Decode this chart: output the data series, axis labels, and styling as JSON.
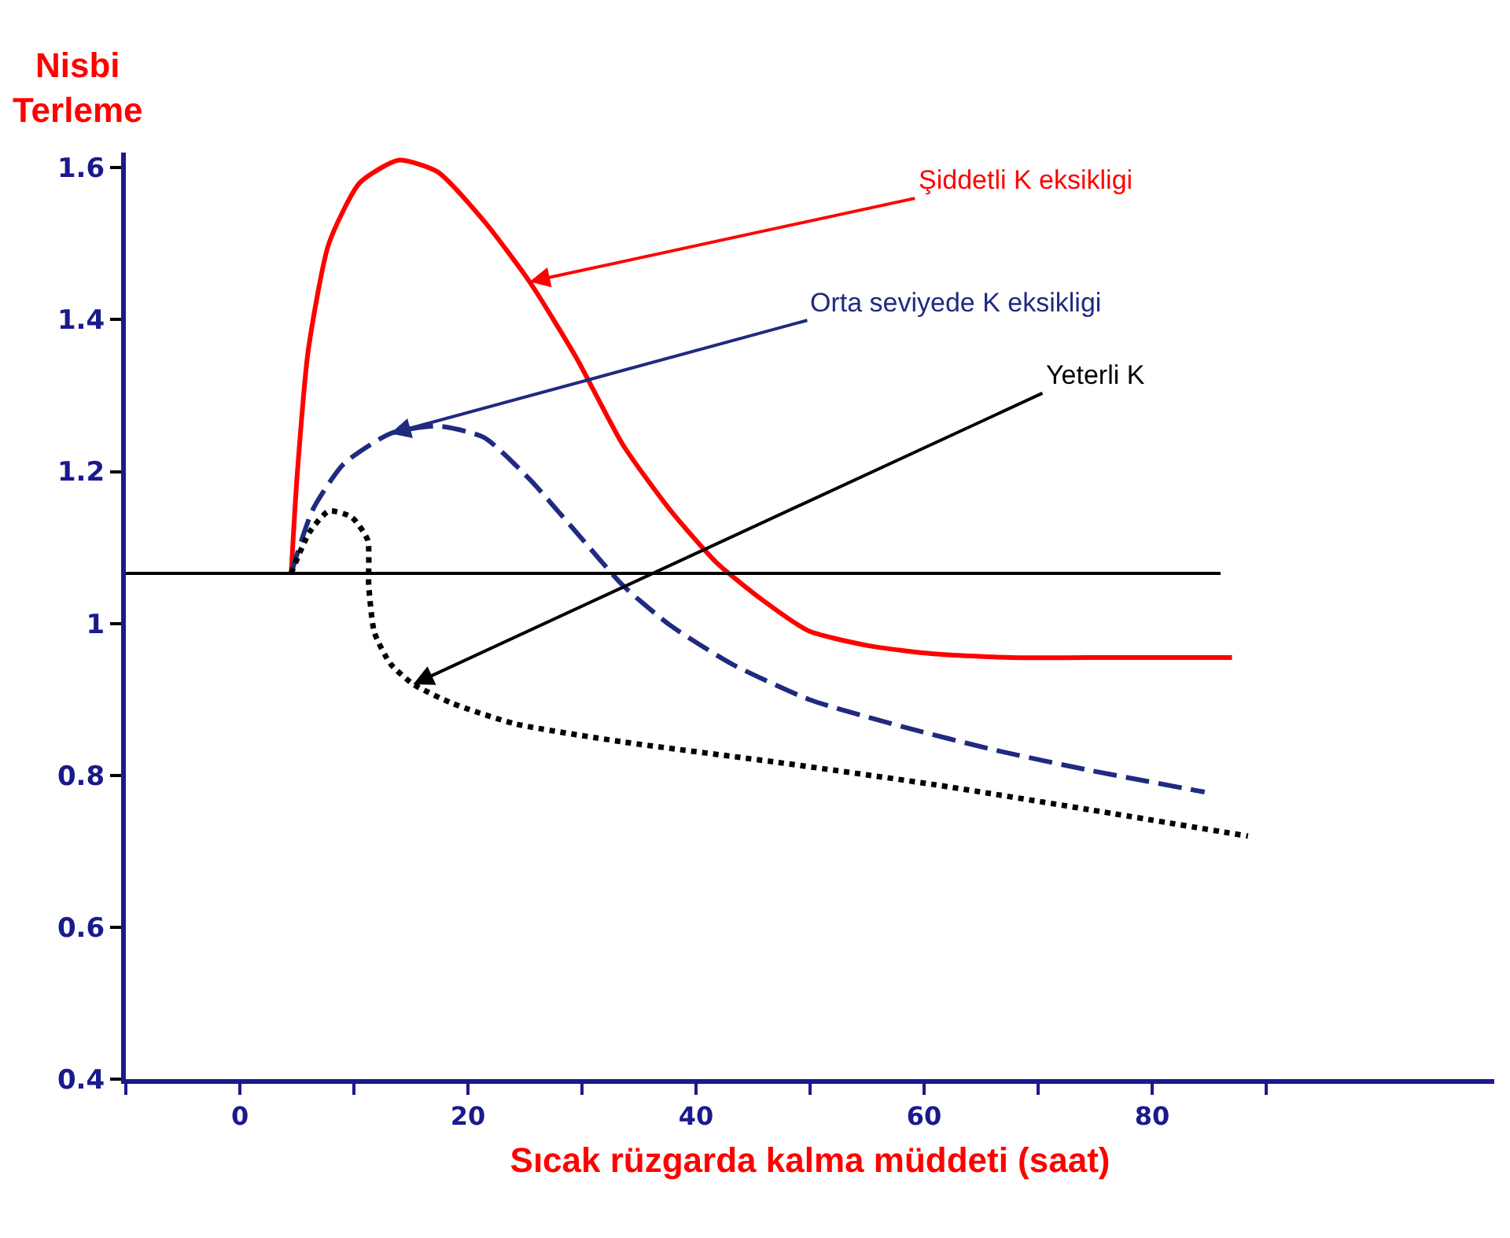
{
  "chart_data": {
    "type": "line",
    "ylabel": "Nisbi\nTerleme",
    "xlabel": "Sıcak rüzgarda kalma müddeti (saat)",
    "xlim": [
      -10,
      110
    ],
    "xticks": [
      {
        "value": -10,
        "label": null
      },
      0,
      {
        "value": 10,
        "label": null
      },
      20,
      {
        "value": 30,
        "label": null
      },
      40,
      {
        "value": 50,
        "label": null
      },
      60,
      {
        "value": 70,
        "label": null
      },
      80,
      {
        "value": 90,
        "label": null
      }
    ],
    "ylim": [
      0.4,
      1.62
    ],
    "yticks": [
      0.4,
      0.6,
      0.8,
      1,
      1.2,
      1.4,
      1.6
    ],
    "grid": false,
    "legend": false,
    "marker": "none",
    "ref_lines": [
      {
        "axis": "y",
        "value": 1.066,
        "color": "#000000"
      }
    ],
    "series": [
      {
        "name": "Şiddetli K eksikligi",
        "color": "#ff0000",
        "line_style": "solid",
        "x": [
          4.5,
          5,
          6,
          7.8,
          10.5,
          13.9,
          17.3,
          21.4,
          25.4,
          29.5,
          33.6,
          37.7,
          41.8,
          45.9,
          49.9,
          55.4,
          60.8,
          67.6,
          74.4,
          87
        ],
        "values": [
          1.066,
          1.19,
          1.36,
          1.5,
          1.58,
          1.61,
          1.595,
          1.53,
          1.45,
          1.35,
          1.235,
          1.15,
          1.08,
          1.03,
          0.99,
          0.97,
          0.96,
          0.955,
          0.955,
          0.955
        ]
      },
      {
        "name": "Orta seviyede K eksikligi",
        "color": "#1f2a80",
        "line_style": "dashed",
        "x": [
          4.5,
          6.4,
          9.1,
          13.2,
          17.3,
          21.4,
          25.4,
          29.5,
          33.6,
          37.7,
          43.1,
          49.9,
          58.1,
          66.3,
          74.4,
          84.6
        ],
        "values": [
          1.066,
          1.15,
          1.21,
          1.25,
          1.26,
          1.245,
          1.19,
          1.12,
          1.05,
          0.998,
          0.947,
          0.9,
          0.864,
          0.833,
          0.807,
          0.778
        ]
      },
      {
        "name": "Yeterli K",
        "color": "#000000",
        "line_style": "dotted",
        "x": [
          4.5,
          6.1,
          7.8,
          9.8,
          11.2,
          11.3,
          11.8,
          13.2,
          15.2,
          18.6,
          24.1,
          33.6,
          47.2,
          60.8,
          74.4,
          88.4
        ],
        "values": [
          1.066,
          1.12,
          1.148,
          1.14,
          1.11,
          1.05,
          0.988,
          0.947,
          0.92,
          0.895,
          0.868,
          0.844,
          0.817,
          0.788,
          0.755,
          0.72
        ]
      }
    ]
  }
}
